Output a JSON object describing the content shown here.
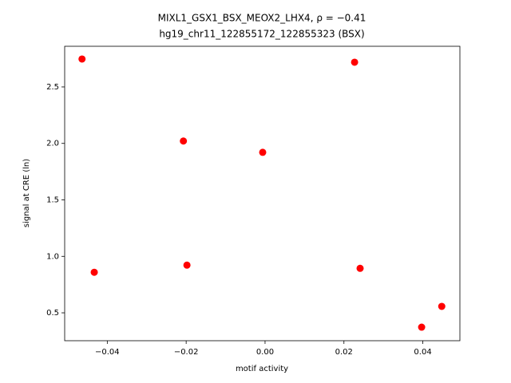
{
  "chart_data": {
    "type": "scatter",
    "title": "MIXL1_GSX1_BSX_MEOX2_LHX4, ρ = −0.41",
    "subtitle": "hg19_chr11_122855172_122855323 (BSX)",
    "x_label": "motif activity",
    "y_label": "signal at CRE (ln)",
    "color": "#ff0000",
    "x": [
      -0.0464,
      0.0227,
      -0.0207,
      -0.0006,
      -0.0433,
      -0.0198,
      0.0241,
      0.0448,
      0.0397
    ],
    "values": [
      2.747,
      2.719,
      2.021,
      1.921,
      0.859,
      0.922,
      0.894,
      0.557,
      0.373
    ],
    "xlim": [
      -0.0508,
      0.0494
    ],
    "ylim": [
      0.253,
      2.86
    ],
    "xticks": [
      {
        "value": -0.04,
        "label": "−0.04"
      },
      {
        "value": -0.02,
        "label": "−0.02"
      },
      {
        "value": 0,
        "label": "0.00"
      },
      0.02,
      0.04
    ],
    "yticks": [
      0.5,
      {
        "value": 1,
        "label": "1.0"
      },
      1.5,
      {
        "value": 2,
        "label": "2.0"
      },
      2.5
    ]
  }
}
